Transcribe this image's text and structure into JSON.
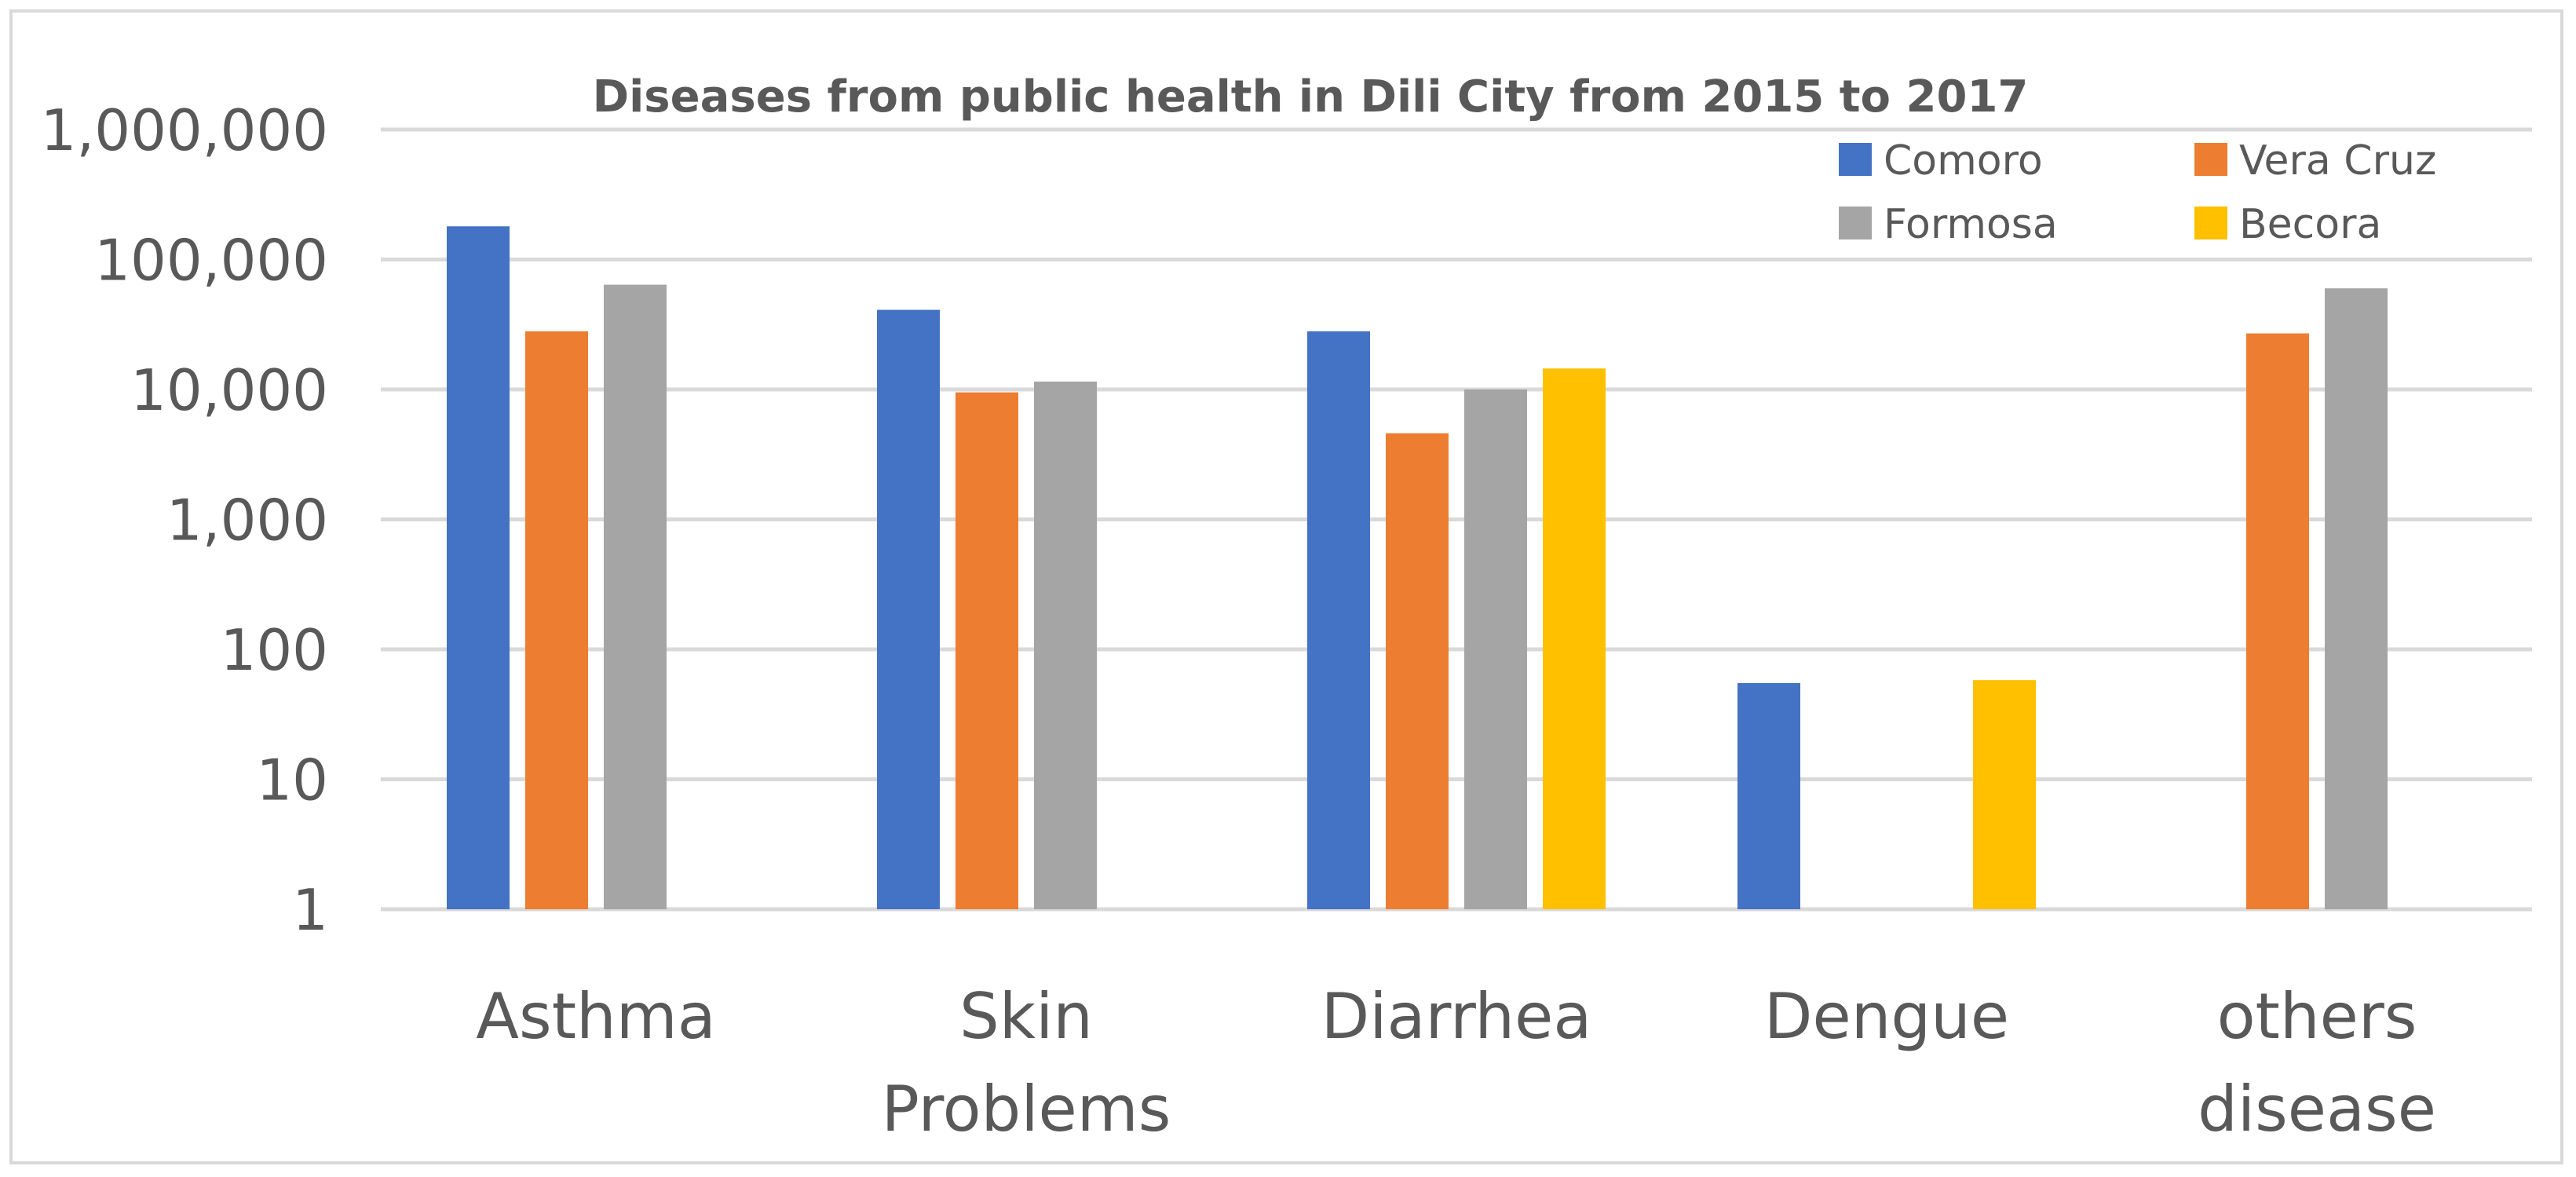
{
  "chart_data": {
    "type": "bar",
    "title": "Diseases from public health in Dili City from 2015 to 2017",
    "xlabel": "",
    "ylabel": "",
    "yscale": "log",
    "ylim": [
      1,
      1000000
    ],
    "yticks": [
      1,
      10,
      100,
      1000,
      10000,
      100000,
      1000000
    ],
    "ytick_labels": [
      "1",
      "10",
      "100",
      "1,000",
      "10,000",
      "100,000",
      "1,000,000"
    ],
    "categories": [
      [
        "Asthma"
      ],
      [
        "Skin",
        "Problems"
      ],
      [
        "Diarrhea"
      ],
      [
        "Dengue"
      ],
      [
        "others",
        "disease"
      ]
    ],
    "series": [
      {
        "name": "Comoro",
        "color": "#4472c4",
        "values": [
          180000,
          41000,
          28000,
          55,
          null
        ]
      },
      {
        "name": "Vera Cruz",
        "color": "#ed7d31",
        "values": [
          28000,
          9500,
          4600,
          null,
          27000
        ]
      },
      {
        "name": "Formosa",
        "color": "#a5a5a5",
        "values": [
          64000,
          11500,
          10000,
          null,
          60000
        ]
      },
      {
        "name": "Becora",
        "color": "#ffc000",
        "values": [
          null,
          null,
          14500,
          58,
          null
        ]
      }
    ],
    "grid": true,
    "legend_position": "top-right"
  }
}
